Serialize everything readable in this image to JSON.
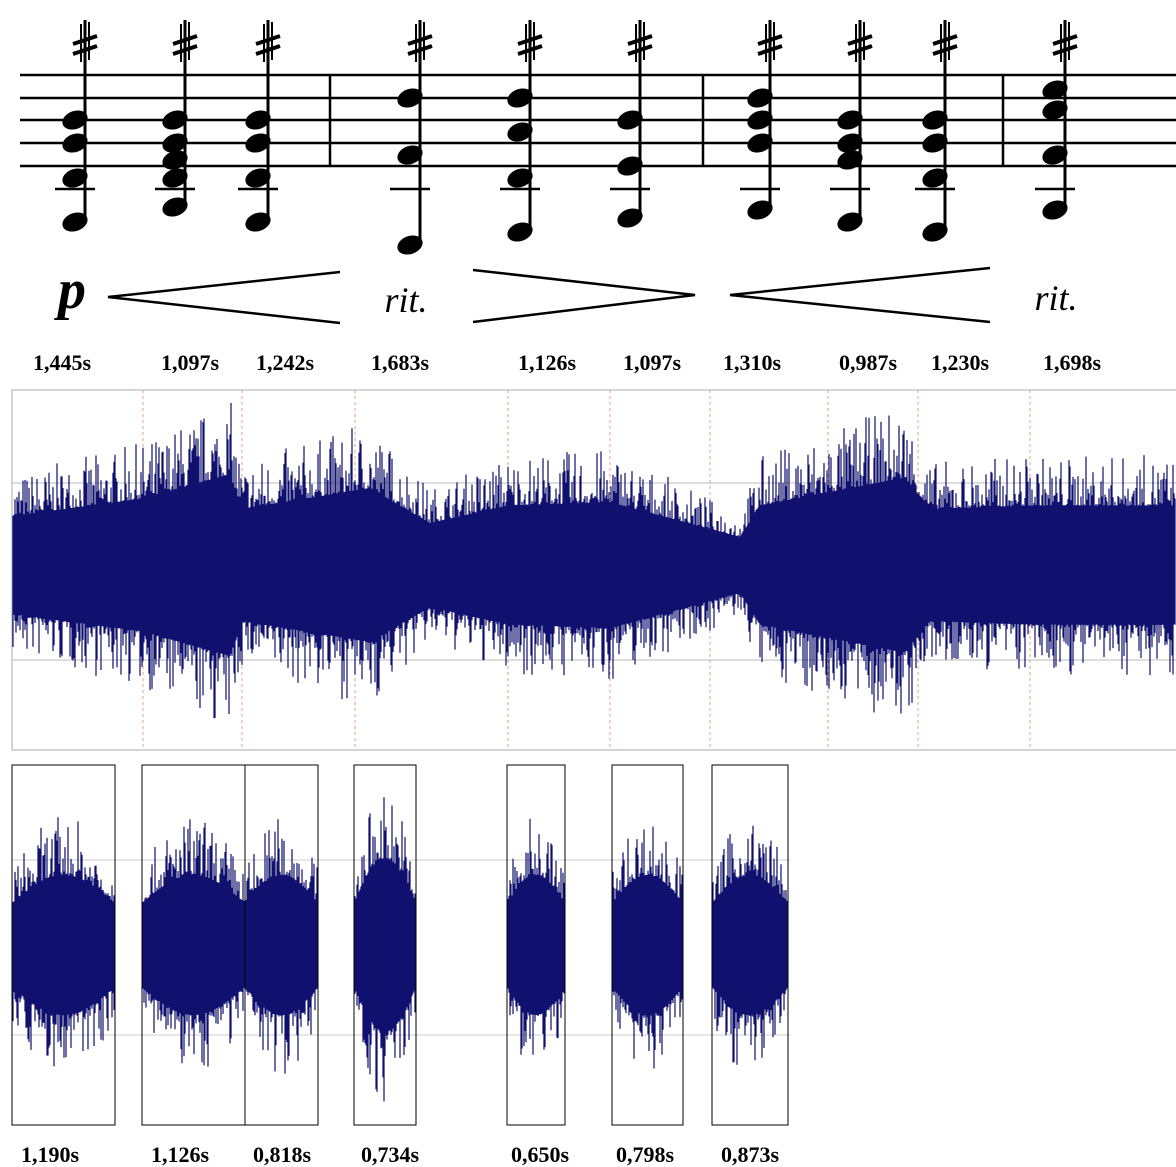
{
  "score": {
    "dynamic": "p",
    "tempo_marks": [
      "rit.",
      "rit."
    ]
  },
  "durations_top": [
    "1,445s",
    "1,097s",
    "1,242s",
    "1,683s",
    "1,126s",
    "1,097s",
    "1,310s",
    "0,987s",
    "1,230s",
    "1,698s"
  ],
  "durations_bottom": [
    "1,190s",
    "1,126s",
    "0,818s",
    "0,734s",
    "0,650s",
    "0,798s",
    "0,873s"
  ]
}
